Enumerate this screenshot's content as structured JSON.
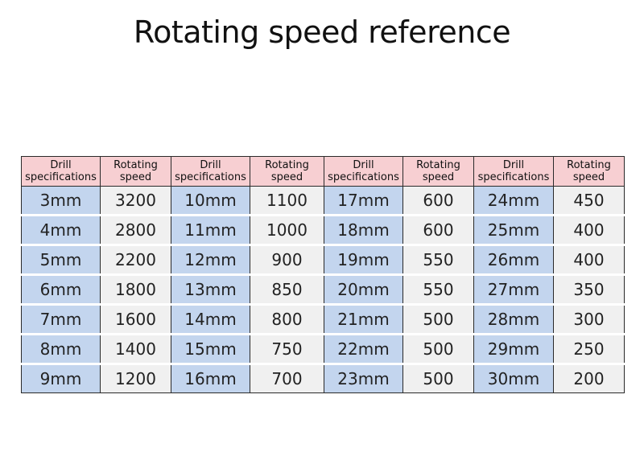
{
  "title": "Rotating speed reference",
  "headers": {
    "spec": [
      "Drill",
      "specifications"
    ],
    "speed": [
      "Rotating",
      "speed"
    ]
  },
  "groups": [
    {
      "rows": [
        {
          "spec": "3mm",
          "speed": "3200"
        },
        {
          "spec": "4mm",
          "speed": "2800"
        },
        {
          "spec": "5mm",
          "speed": "2200"
        },
        {
          "spec": "6mm",
          "speed": "1800"
        },
        {
          "spec": "7mm",
          "speed": "1600"
        },
        {
          "spec": "8mm",
          "speed": "1400"
        },
        {
          "spec": "9mm",
          "speed": "1200"
        }
      ]
    },
    {
      "rows": [
        {
          "spec": "10mm",
          "speed": "1100"
        },
        {
          "spec": "11mm",
          "speed": "1000"
        },
        {
          "spec": "12mm",
          "speed": "900"
        },
        {
          "spec": "13mm",
          "speed": "850"
        },
        {
          "spec": "14mm",
          "speed": "800"
        },
        {
          "spec": "15mm",
          "speed": "750"
        },
        {
          "spec": "16mm",
          "speed": "700"
        }
      ]
    },
    {
      "rows": [
        {
          "spec": "17mm",
          "speed": "600"
        },
        {
          "spec": "18mm",
          "speed": "600"
        },
        {
          "spec": "19mm",
          "speed": "550"
        },
        {
          "spec": "20mm",
          "speed": "550"
        },
        {
          "spec": "21mm",
          "speed": "500"
        },
        {
          "spec": "22mm",
          "speed": "500"
        },
        {
          "spec": "23mm",
          "speed": "500"
        }
      ]
    },
    {
      "rows": [
        {
          "spec": "24mm",
          "speed": "450"
        },
        {
          "spec": "25mm",
          "speed": "400"
        },
        {
          "spec": "26mm",
          "speed": "400"
        },
        {
          "spec": "27mm",
          "speed": "350"
        },
        {
          "spec": "28mm",
          "speed": "300"
        },
        {
          "spec": "29mm",
          "speed": "250"
        },
        {
          "spec": "30mm",
          "speed": "200"
        }
      ]
    }
  ],
  "colors": {
    "header_bg": "#f7cfd2",
    "spec_bg": "#c3d5ee",
    "speed_bg": "#f0f0f0",
    "border": "#2a2a2a"
  }
}
